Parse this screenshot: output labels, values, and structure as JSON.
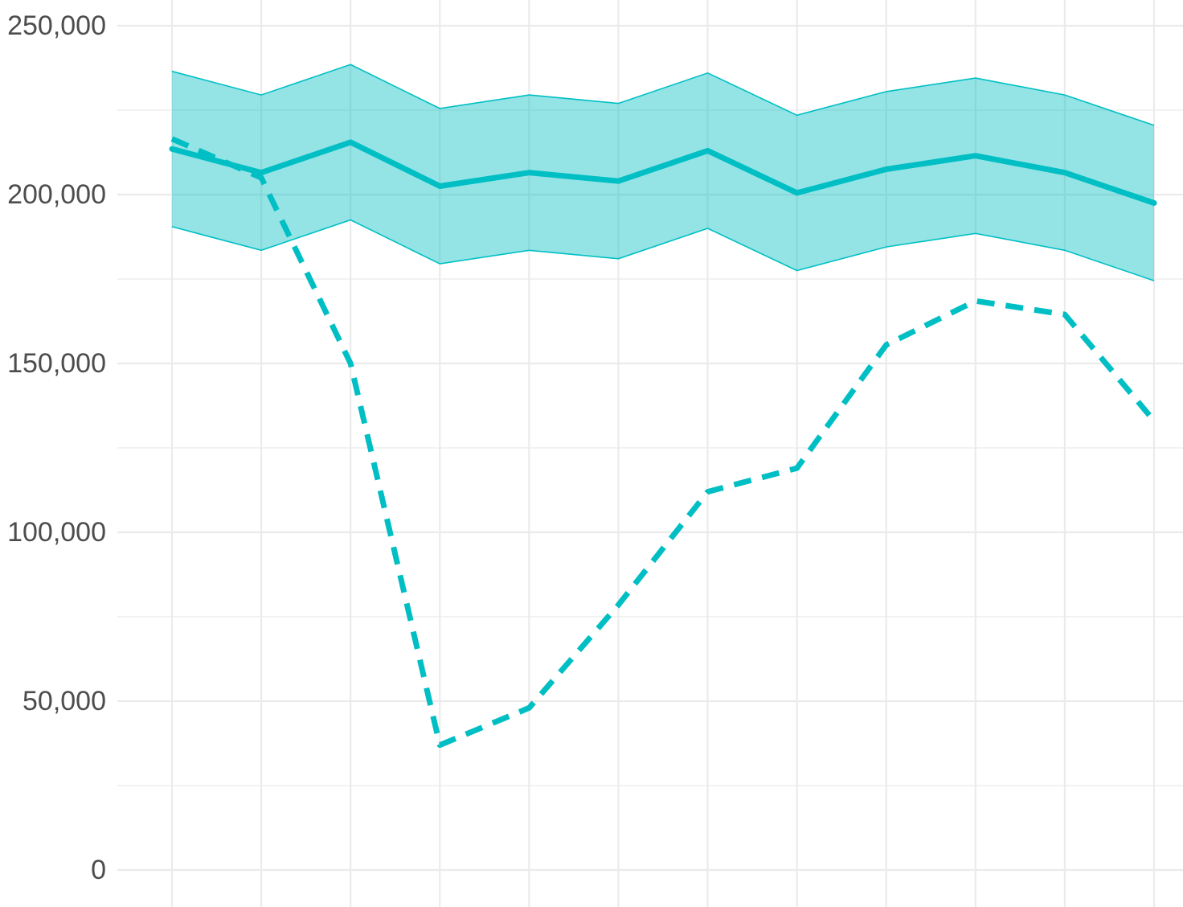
{
  "chart_data": {
    "type": "line",
    "title": "",
    "xlabel": "",
    "ylabel": "",
    "x": [
      1,
      2,
      3,
      4,
      5,
      6,
      7,
      8,
      9,
      10,
      11,
      12
    ],
    "ylim": [
      0,
      250000
    ],
    "y_ticks": [
      0,
      50000,
      100000,
      150000,
      200000,
      250000
    ],
    "y_tick_labels": [
      "0",
      "50,000",
      "100,000",
      "150,000",
      "200,000",
      "250,000"
    ],
    "grid": true,
    "legend": "none",
    "colors": {
      "series": "#00bfc4",
      "band_fill": "#00bfc4",
      "grid": "#ebebeb"
    },
    "band": {
      "lower": [
        190500,
        183500,
        192500,
        179500,
        183500,
        181000,
        190000,
        177500,
        184500,
        188500,
        183500,
        174500
      ],
      "upper": [
        236500,
        229500,
        238500,
        225500,
        229500,
        227000,
        236000,
        223500,
        230500,
        234500,
        229500,
        220500
      ]
    },
    "series": [
      {
        "style": "solid",
        "values": [
          213500,
          206500,
          215500,
          202500,
          206500,
          204000,
          213000,
          200500,
          207500,
          211500,
          206500,
          197500
        ]
      },
      {
        "style": "dashed",
        "values": [
          216500,
          205000,
          150000,
          37000,
          48000,
          78500,
          112000,
          119000,
          155500,
          168500,
          164500,
          133000
        ]
      }
    ]
  }
}
